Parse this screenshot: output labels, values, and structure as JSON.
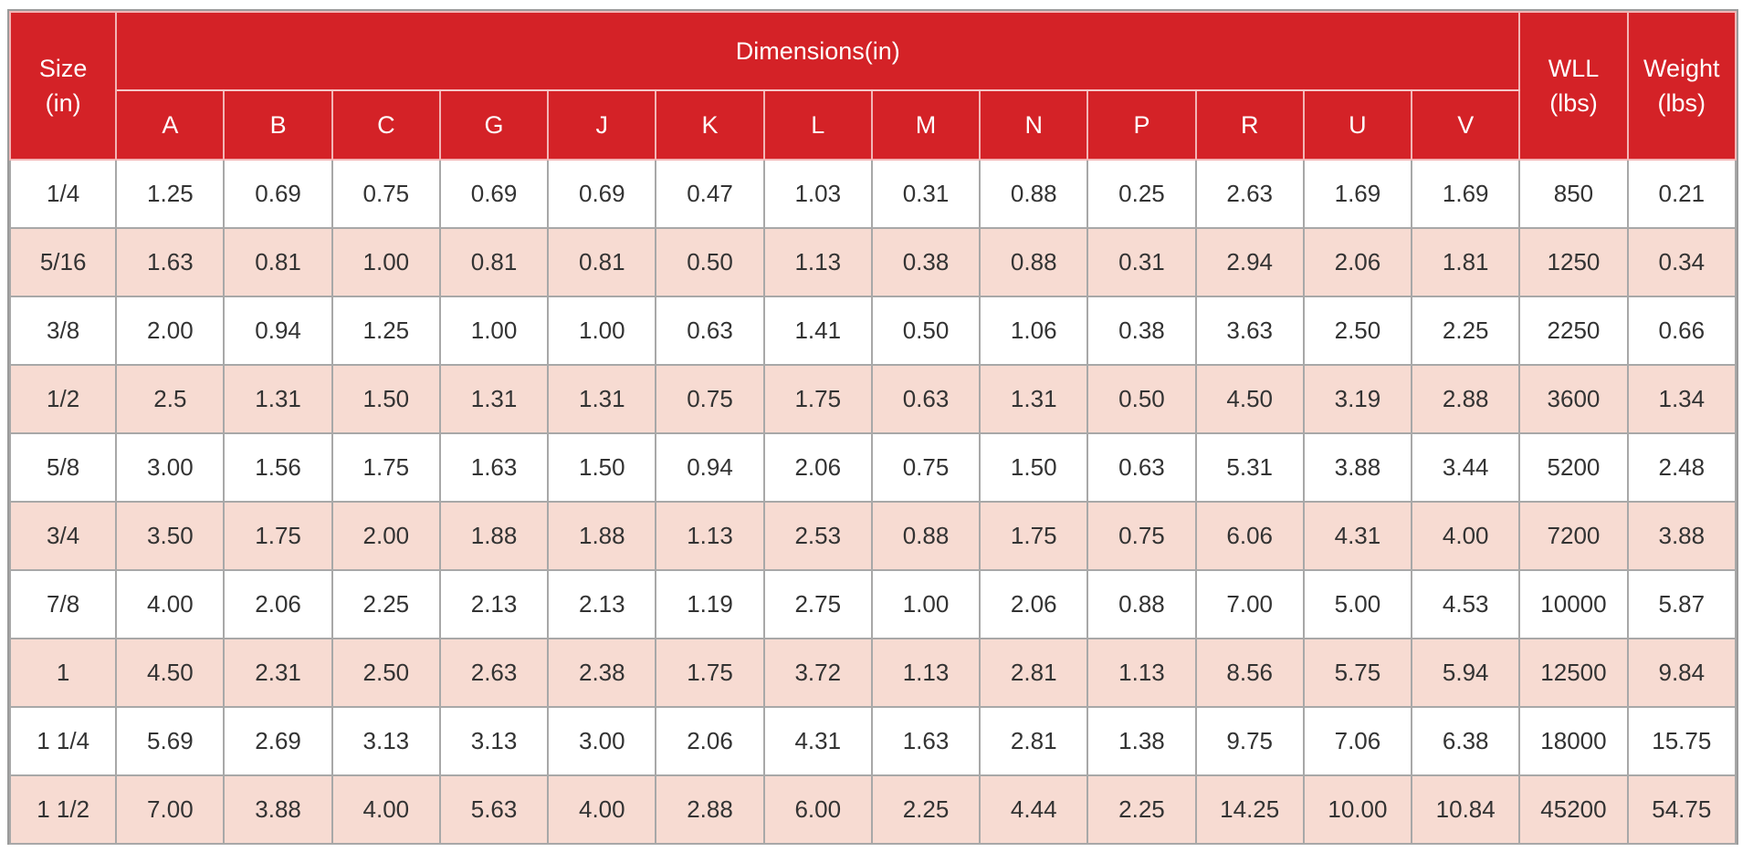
{
  "header": {
    "size_label_line1": "Size",
    "size_label_line2": "(in)",
    "dimensions_label": "Dimensions(in)",
    "wll_label_line1": "WLL",
    "wll_label_line2": "(lbs)",
    "weight_label_line1": "Weight",
    "weight_label_line2": "(lbs)",
    "dimension_columns": [
      "A",
      "B",
      "C",
      "G",
      "J",
      "K",
      "L",
      "M",
      "N",
      "P",
      "R",
      "U",
      "V"
    ]
  },
  "colors": {
    "header_red": "#d42227",
    "header_text": "#ffffff",
    "stripe_pink": "#f7dbd2",
    "row_white": "#ffffff"
  },
  "rows": [
    {
      "size": "1/4",
      "dims": [
        "1.25",
        "0.69",
        "0.75",
        "0.69",
        "0.69",
        "0.47",
        "1.03",
        "0.31",
        "0.88",
        "0.25",
        "2.63",
        "1.69",
        "1.69"
      ],
      "wll": "850",
      "weight": "0.21"
    },
    {
      "size": "5/16",
      "dims": [
        "1.63",
        "0.81",
        "1.00",
        "0.81",
        "0.81",
        "0.50",
        "1.13",
        "0.38",
        "0.88",
        "0.31",
        "2.94",
        "2.06",
        "1.81"
      ],
      "wll": "1250",
      "weight": "0.34"
    },
    {
      "size": "3/8",
      "dims": [
        "2.00",
        "0.94",
        "1.25",
        "1.00",
        "1.00",
        "0.63",
        "1.41",
        "0.50",
        "1.06",
        "0.38",
        "3.63",
        "2.50",
        "2.25"
      ],
      "wll": "2250",
      "weight": "0.66"
    },
    {
      "size": "1/2",
      "dims": [
        "2.5",
        "1.31",
        "1.50",
        "1.31",
        "1.31",
        "0.75",
        "1.75",
        "0.63",
        "1.31",
        "0.50",
        "4.50",
        "3.19",
        "2.88"
      ],
      "wll": "3600",
      "weight": "1.34"
    },
    {
      "size": "5/8",
      "dims": [
        "3.00",
        "1.56",
        "1.75",
        "1.63",
        "1.50",
        "0.94",
        "2.06",
        "0.75",
        "1.50",
        "0.63",
        "5.31",
        "3.88",
        "3.44"
      ],
      "wll": "5200",
      "weight": "2.48"
    },
    {
      "size": "3/4",
      "dims": [
        "3.50",
        "1.75",
        "2.00",
        "1.88",
        "1.88",
        "1.13",
        "2.53",
        "0.88",
        "1.75",
        "0.75",
        "6.06",
        "4.31",
        "4.00"
      ],
      "wll": "7200",
      "weight": "3.88"
    },
    {
      "size": "7/8",
      "dims": [
        "4.00",
        "2.06",
        "2.25",
        "2.13",
        "2.13",
        "1.19",
        "2.75",
        "1.00",
        "2.06",
        "0.88",
        "7.00",
        "5.00",
        "4.53"
      ],
      "wll": "10000",
      "weight": "5.87"
    },
    {
      "size": "1",
      "dims": [
        "4.50",
        "2.31",
        "2.50",
        "2.63",
        "2.38",
        "1.75",
        "3.72",
        "1.13",
        "2.81",
        "1.13",
        "8.56",
        "5.75",
        "5.94"
      ],
      "wll": "12500",
      "weight": "9.84"
    },
    {
      "size": "1 1/4",
      "dims": [
        "5.69",
        "2.69",
        "3.13",
        "3.13",
        "3.00",
        "2.06",
        "4.31",
        "1.63",
        "2.81",
        "1.38",
        "9.75",
        "7.06",
        "6.38"
      ],
      "wll": "18000",
      "weight": "15.75"
    },
    {
      "size": "1 1/2",
      "dims": [
        "7.00",
        "3.88",
        "4.00",
        "5.63",
        "4.00",
        "2.88",
        "6.00",
        "2.25",
        "4.44",
        "2.25",
        "14.25",
        "10.00",
        "10.84"
      ],
      "wll": "45200",
      "weight": "54.75"
    }
  ]
}
